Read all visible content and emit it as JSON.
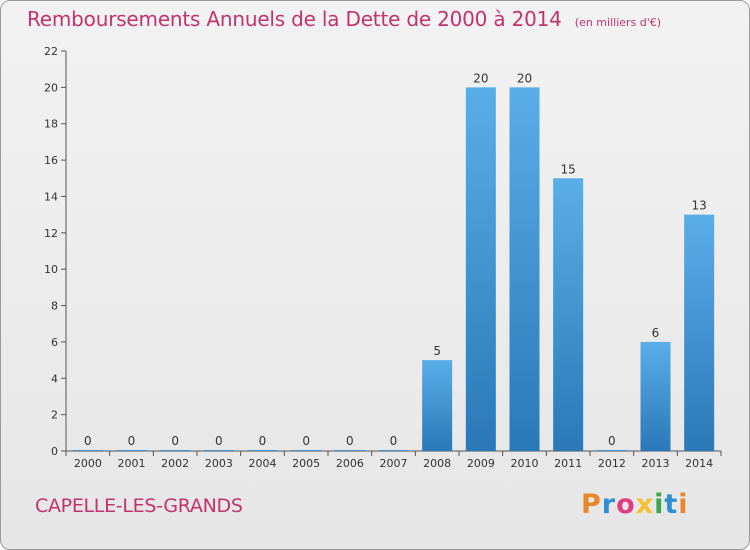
{
  "header": {
    "title": "Remboursements Annuels de la Dette de 2000 à 2014",
    "unit": "(en milliers d'€)"
  },
  "footer": {
    "commune": "CAPELLE-LES-GRANDS",
    "logo_text": "Proxiti",
    "logo_colors": [
      "#e8872a",
      "#2e8fd0",
      "#e03c82",
      "#f2c230",
      "#3aa64a",
      "#2e8fd0",
      "#e8872a"
    ]
  },
  "colors": {
    "bar_light": "#5aaee8",
    "bar_dark": "#2a78b8",
    "title": "#c2336d"
  },
  "chart_data": {
    "type": "bar",
    "categories": [
      "2000",
      "2001",
      "2002",
      "2003",
      "2004",
      "2005",
      "2006",
      "2007",
      "2008",
      "2009",
      "2010",
      "2011",
      "2012",
      "2013",
      "2014"
    ],
    "values": [
      0,
      0,
      0,
      0,
      0,
      0,
      0,
      0,
      5,
      20,
      20,
      15,
      0,
      6,
      13
    ],
    "data_labels": [
      "0",
      "0",
      "0",
      "0",
      "0",
      "0",
      "0",
      "0",
      "5",
      "20",
      "20",
      "15",
      "0",
      "6",
      "13"
    ],
    "yticks": [
      "0",
      "2",
      "4",
      "6",
      "8",
      "10",
      "12",
      "14",
      "16",
      "18",
      "20",
      "22"
    ],
    "ylim": [
      0,
      22
    ],
    "grid": false,
    "legend": "none"
  }
}
